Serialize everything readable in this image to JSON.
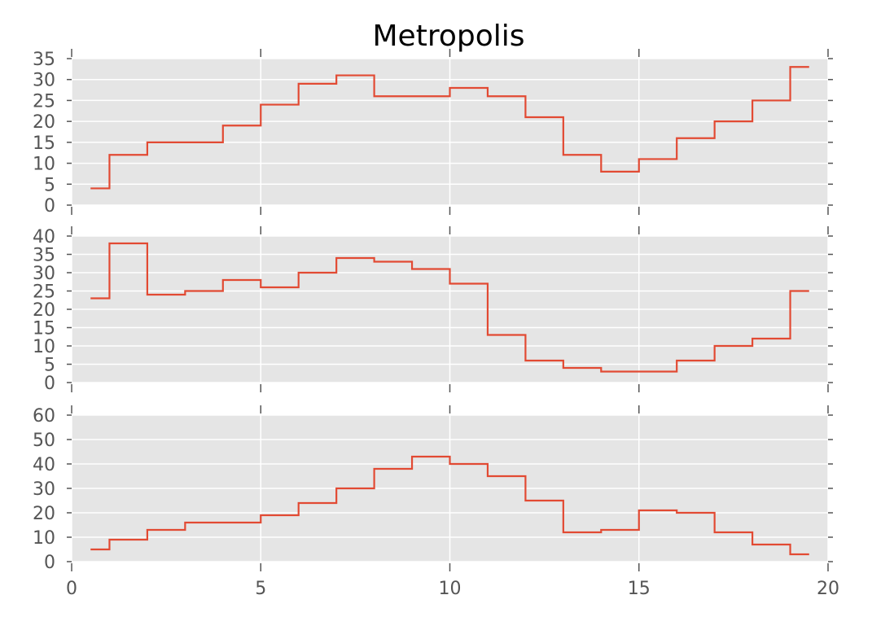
{
  "chart_data": {
    "type": "line",
    "title": "Metropolis",
    "style": "ggplot",
    "line_color": "#E24A33",
    "panel_background": "#E5E5E5",
    "grid": true,
    "step": "post",
    "xlim": [
      0,
      20
    ],
    "xticks": [
      0,
      5,
      10,
      15,
      20
    ],
    "xlabel": "",
    "edges": [
      0.5,
      1,
      2,
      3,
      4,
      5,
      6,
      7,
      8,
      9,
      10,
      11,
      12,
      13,
      14,
      15,
      16,
      17,
      18,
      19,
      19.5
    ],
    "panels": [
      {
        "ylim": [
          0,
          35
        ],
        "yticks": [
          0,
          5,
          10,
          15,
          20,
          25,
          30,
          35
        ],
        "values": [
          4,
          12,
          15,
          15,
          19,
          24,
          29,
          31,
          26,
          26,
          28,
          26,
          21,
          12,
          8,
          11,
          16,
          20,
          25,
          33
        ]
      },
      {
        "ylim": [
          0,
          40
        ],
        "yticks": [
          0,
          5,
          10,
          15,
          20,
          25,
          30,
          35,
          40
        ],
        "values": [
          23,
          38,
          24,
          25,
          28,
          26,
          30,
          34,
          33,
          31,
          27,
          13,
          6,
          4,
          3,
          3,
          6,
          10,
          12,
          25
        ]
      },
      {
        "ylim": [
          0,
          60
        ],
        "yticks": [
          0,
          10,
          20,
          30,
          40,
          50,
          60
        ],
        "values": [
          5,
          9,
          13,
          16,
          16,
          19,
          24,
          30,
          38,
          43,
          40,
          35,
          25,
          12,
          13,
          21,
          20,
          12,
          7,
          3
        ]
      }
    ]
  }
}
